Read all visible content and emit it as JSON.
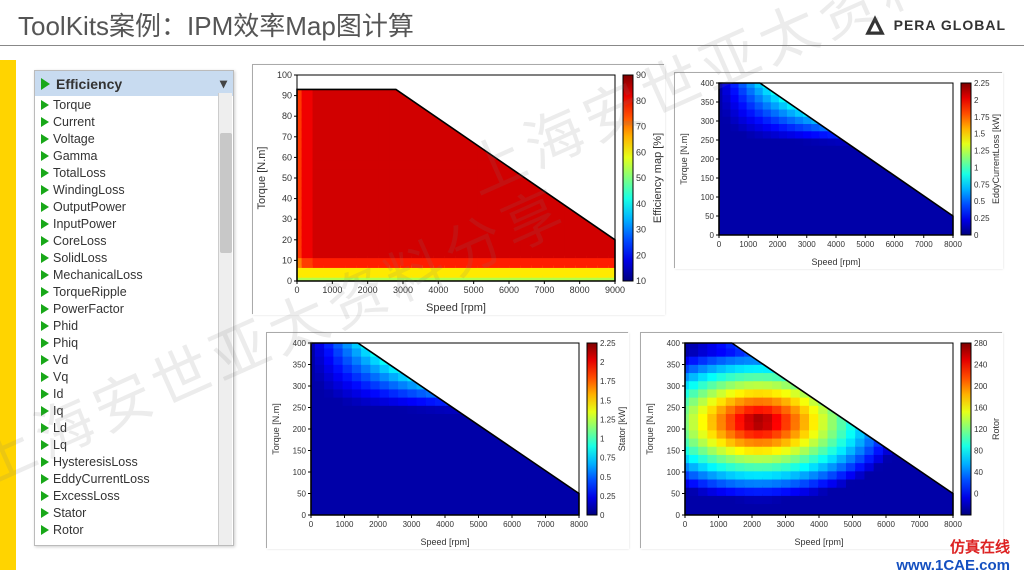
{
  "header": {
    "title": "ToolKits案例：IPM效率Map图计算",
    "brand": "PERA GLOBAL"
  },
  "sidebar": {
    "selected": "Efficiency",
    "items": [
      "Torque",
      "Current",
      "Voltage",
      "Gamma",
      "TotalLoss",
      "WindingLoss",
      "OutputPower",
      "InputPower",
      "CoreLoss",
      "SolidLoss",
      "MechanicalLoss",
      "TorqueRipple",
      "PowerFactor",
      "Phid",
      "Phiq",
      "Vd",
      "Vq",
      "Id",
      "Iq",
      "Ld",
      "Lq",
      "HysteresisLoss",
      "EddyCurrentLoss",
      "ExcessLoss",
      "Stator",
      "Rotor"
    ]
  },
  "charts": {
    "main": {
      "type": "contour-heatmap",
      "xlabel": "Speed [rpm]",
      "ylabel": "Torque [N.m]",
      "cbar_label": "Efficiency map [%]",
      "xlim": [
        0,
        9000
      ],
      "xtick_step": 1000,
      "ylim": [
        0,
        100
      ],
      "ytick_step": 10,
      "cbar_lim": [
        10,
        90
      ],
      "cbar_step": 10,
      "boundary": [
        [
          0,
          93
        ],
        [
          2800,
          93
        ],
        [
          9000,
          20
        ],
        [
          9000,
          0
        ],
        [
          0,
          0
        ]
      ],
      "contour_levels": [
        78,
        79,
        89,
        90,
        91,
        92,
        93,
        94
      ],
      "colormap": "jet",
      "bg": "#ffffff",
      "grid_color": "#dddddd",
      "label_fontsize": 11,
      "tick_fontsize": 9
    },
    "eddy": {
      "type": "heatmap",
      "xlabel": "Speed [rpm]",
      "ylabel": "Torque [N.m]",
      "cbar_label": "EddyCurrentLoss [kW]",
      "xlim": [
        0,
        8000
      ],
      "xtick_step": 1000,
      "ylim": [
        0,
        400
      ],
      "ytick_step": 50,
      "cbar_lim": [
        0,
        2.25
      ],
      "cbar_step": 0.25,
      "boundary": [
        [
          0,
          400
        ],
        [
          1400,
          400
        ],
        [
          8000,
          50
        ],
        [
          8000,
          0
        ],
        [
          0,
          0
        ]
      ],
      "colormap": "jet",
      "label_fontsize": 9,
      "tick_fontsize": 8
    },
    "stator": {
      "type": "heatmap",
      "xlabel": "Speed [rpm]",
      "ylabel": "Torque [N.m]",
      "cbar_label": "Stator [kW]",
      "xlim": [
        0,
        8000
      ],
      "xtick_step": 1000,
      "ylim": [
        0,
        400
      ],
      "ytick_step": 50,
      "cbar_lim": [
        0,
        2.25
      ],
      "cbar_step": 0.25,
      "boundary": [
        [
          0,
          400
        ],
        [
          1400,
          400
        ],
        [
          8000,
          50
        ],
        [
          8000,
          0
        ],
        [
          0,
          0
        ]
      ],
      "colormap": "jet",
      "label_fontsize": 9,
      "tick_fontsize": 8
    },
    "rotor": {
      "type": "heatmap",
      "xlabel": "Speed [rpm]",
      "ylabel": "Torque [N.m]",
      "cbar_label": "Rotor",
      "xlim": [
        0,
        8000
      ],
      "xtick_step": 1000,
      "ylim": [
        0,
        400
      ],
      "ytick_step": 50,
      "cbar_lim": [
        -40,
        280
      ],
      "cbar_ticks": [
        0,
        40,
        80,
        120,
        160,
        200,
        240,
        280
      ],
      "boundary": [
        [
          0,
          400
        ],
        [
          1400,
          400
        ],
        [
          8000,
          50
        ],
        [
          8000,
          0
        ],
        [
          0,
          0
        ]
      ],
      "colormap": "jet",
      "label_fontsize": 9,
      "tick_fontsize": 8
    }
  },
  "watermark": "上海安世亚太资料分享",
  "footer": {
    "line1": "仿真在线",
    "line2": "www.1CAE.com"
  }
}
